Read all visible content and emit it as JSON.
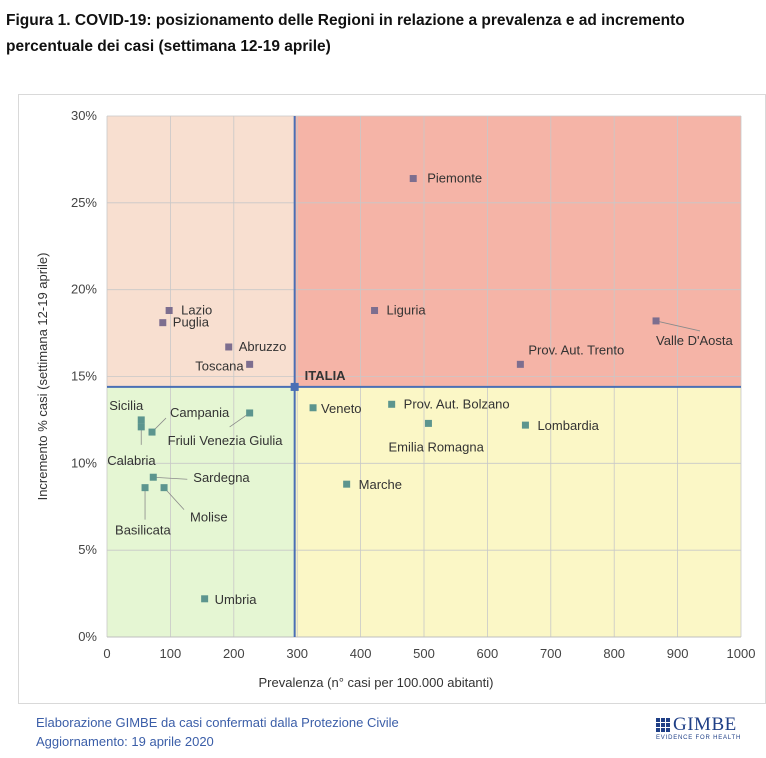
{
  "figure": {
    "title": "Figura 1. COVID-19: posizionamento delle Regioni in relazione a prevalenza e ad incremento percentuale dei casi (settimana 12-19 aprile)"
  },
  "source": {
    "line1": "Elaborazione GIMBE da casi confermati dalla Protezione Civile",
    "line2": "Aggiornamento: 19 aprile 2020"
  },
  "logo": {
    "name": "GIMBE",
    "tagline": "EVIDENCE FOR HEALTH"
  },
  "colors": {
    "quad_top_left": "#f8dfd0",
    "quad_top_right": "#f5b4a7",
    "quad_bottom_left": "#e5f6d3",
    "quad_bottom_right": "#fbf7c6",
    "reference_line": "#4a6fb5",
    "marker_top": "#7d6e8f",
    "marker_bottom": "#5c958e",
    "marker_italia": "#4a6fb5",
    "grid": "#c8c8c8",
    "label_color": "#333333",
    "italia_label": "#333333"
  },
  "chart_data": {
    "type": "scatter",
    "xlabel": "Prevalenza  (n° casi per 100.000 abitanti)",
    "ylabel": "Incremento % casi (settimana 12-19 aprile)",
    "xlim": [
      0,
      1000
    ],
    "ylim": [
      0,
      30
    ],
    "x_ticks": [
      0,
      100,
      200,
      300,
      400,
      500,
      600,
      700,
      800,
      900,
      1000
    ],
    "y_ticks": [
      0,
      5,
      10,
      15,
      20,
      25,
      30
    ],
    "x_tick_labels": [
      "0",
      "100",
      "200",
      "300",
      "400",
      "500",
      "600",
      "700",
      "800",
      "900",
      "1000"
    ],
    "y_tick_labels": [
      "0%",
      "5%",
      "10%",
      "15%",
      "20%",
      "25%",
      "30%"
    ],
    "grid": true,
    "reference": {
      "label": "ITALIA",
      "x": 296,
      "y": 14.4
    },
    "points": [
      {
        "name": "Piemonte",
        "x": 483,
        "y": 26.4
      },
      {
        "name": "Lazio",
        "x": 98,
        "y": 18.8
      },
      {
        "name": "Puglia",
        "x": 88,
        "y": 18.1
      },
      {
        "name": "Liguria",
        "x": 422,
        "y": 18.8
      },
      {
        "name": "Abruzzo",
        "x": 192,
        "y": 16.7
      },
      {
        "name": "Toscana",
        "x": 225,
        "y": 15.7
      },
      {
        "name": "Valle D'Aosta",
        "x": 866,
        "y": 18.2
      },
      {
        "name": "Prov. Aut. Trento",
        "x": 652,
        "y": 15.7
      },
      {
        "name": "Veneto",
        "x": 325,
        "y": 13.2
      },
      {
        "name": "Prov. Aut. Bolzano",
        "x": 449,
        "y": 13.4
      },
      {
        "name": "Emilia Romagna",
        "x": 507,
        "y": 12.3
      },
      {
        "name": "Lombardia",
        "x": 660,
        "y": 12.2
      },
      {
        "name": "Marche",
        "x": 378,
        "y": 8.8
      },
      {
        "name": "Sicilia",
        "x": 54,
        "y": 12.5
      },
      {
        "name": "Calabria",
        "x": 54,
        "y": 12.1
      },
      {
        "name": "Campania",
        "x": 71,
        "y": 11.8
      },
      {
        "name": "Friuli Venezia Giulia",
        "x": 225,
        "y": 12.9
      },
      {
        "name": "Sardegna",
        "x": 73,
        "y": 9.2
      },
      {
        "name": "Basilicata",
        "x": 60,
        "y": 8.6
      },
      {
        "name": "Molise",
        "x": 90,
        "y": 8.6
      },
      {
        "name": "Umbria",
        "x": 154,
        "y": 2.2
      }
    ]
  }
}
